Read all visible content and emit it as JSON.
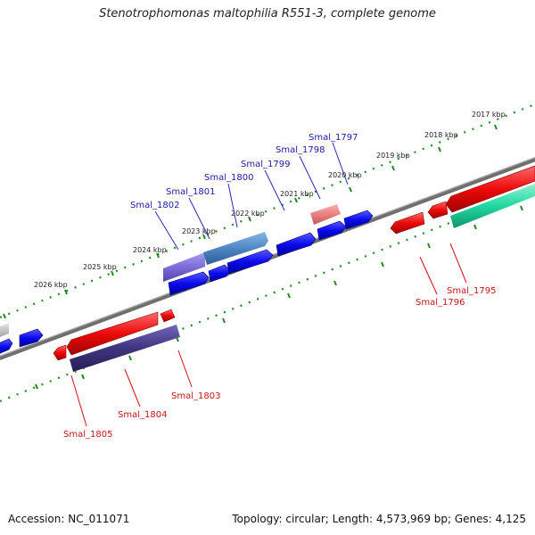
{
  "title": "Stenotrophomonas maltophilia R551-3, complete genome",
  "footer": {
    "accession": "Accession: NC_011071",
    "stats": "Topology: circular; Length: 4,573,969 bp; Genes: 4,125"
  },
  "colors": {
    "forward_gene": "#0a0aee",
    "reverse_gene": "#ee0a0a",
    "highlight_top_a": "#7b6cd8",
    "highlight_top_b": "#4f86c4",
    "highlight_pink": "#e88080",
    "highlight_bottom": "#3f3580",
    "teal_gene": "#20d8a0",
    "backbone": "#7a7a7a",
    "tick": "#1e8c1e",
    "label_forward": "#1a1aa8",
    "label_reverse": "#c81414"
  },
  "scale": {
    "unit": "kbp",
    "ticks": [
      {
        "kbp": 2017,
        "label": "2017 kbp"
      },
      {
        "kbp": 2018,
        "label": "2018 kbp"
      },
      {
        "kbp": 2019,
        "label": "2019 kbp"
      },
      {
        "kbp": 2020,
        "label": "2020 kbp"
      },
      {
        "kbp": 2021,
        "label": "2021 kbp"
      },
      {
        "kbp": 2022,
        "label": "2022 kbp"
      },
      {
        "kbp": 2023,
        "label": "2023 kbp"
      },
      {
        "kbp": 2024,
        "label": "2024 kbp"
      },
      {
        "kbp": 2025,
        "label": "2025 kbp"
      },
      {
        "kbp": 2026,
        "label": "2026 kbp"
      }
    ]
  },
  "gene_labels": {
    "forward": [
      "Smal_1797",
      "Smal_1798",
      "Smal_1799",
      "Smal_1800",
      "Smal_1801",
      "Smal_1802"
    ],
    "reverse": [
      "Smal_1795",
      "Smal_1796",
      "Smal_1803",
      "Smal_1804",
      "Smal_1805"
    ]
  }
}
